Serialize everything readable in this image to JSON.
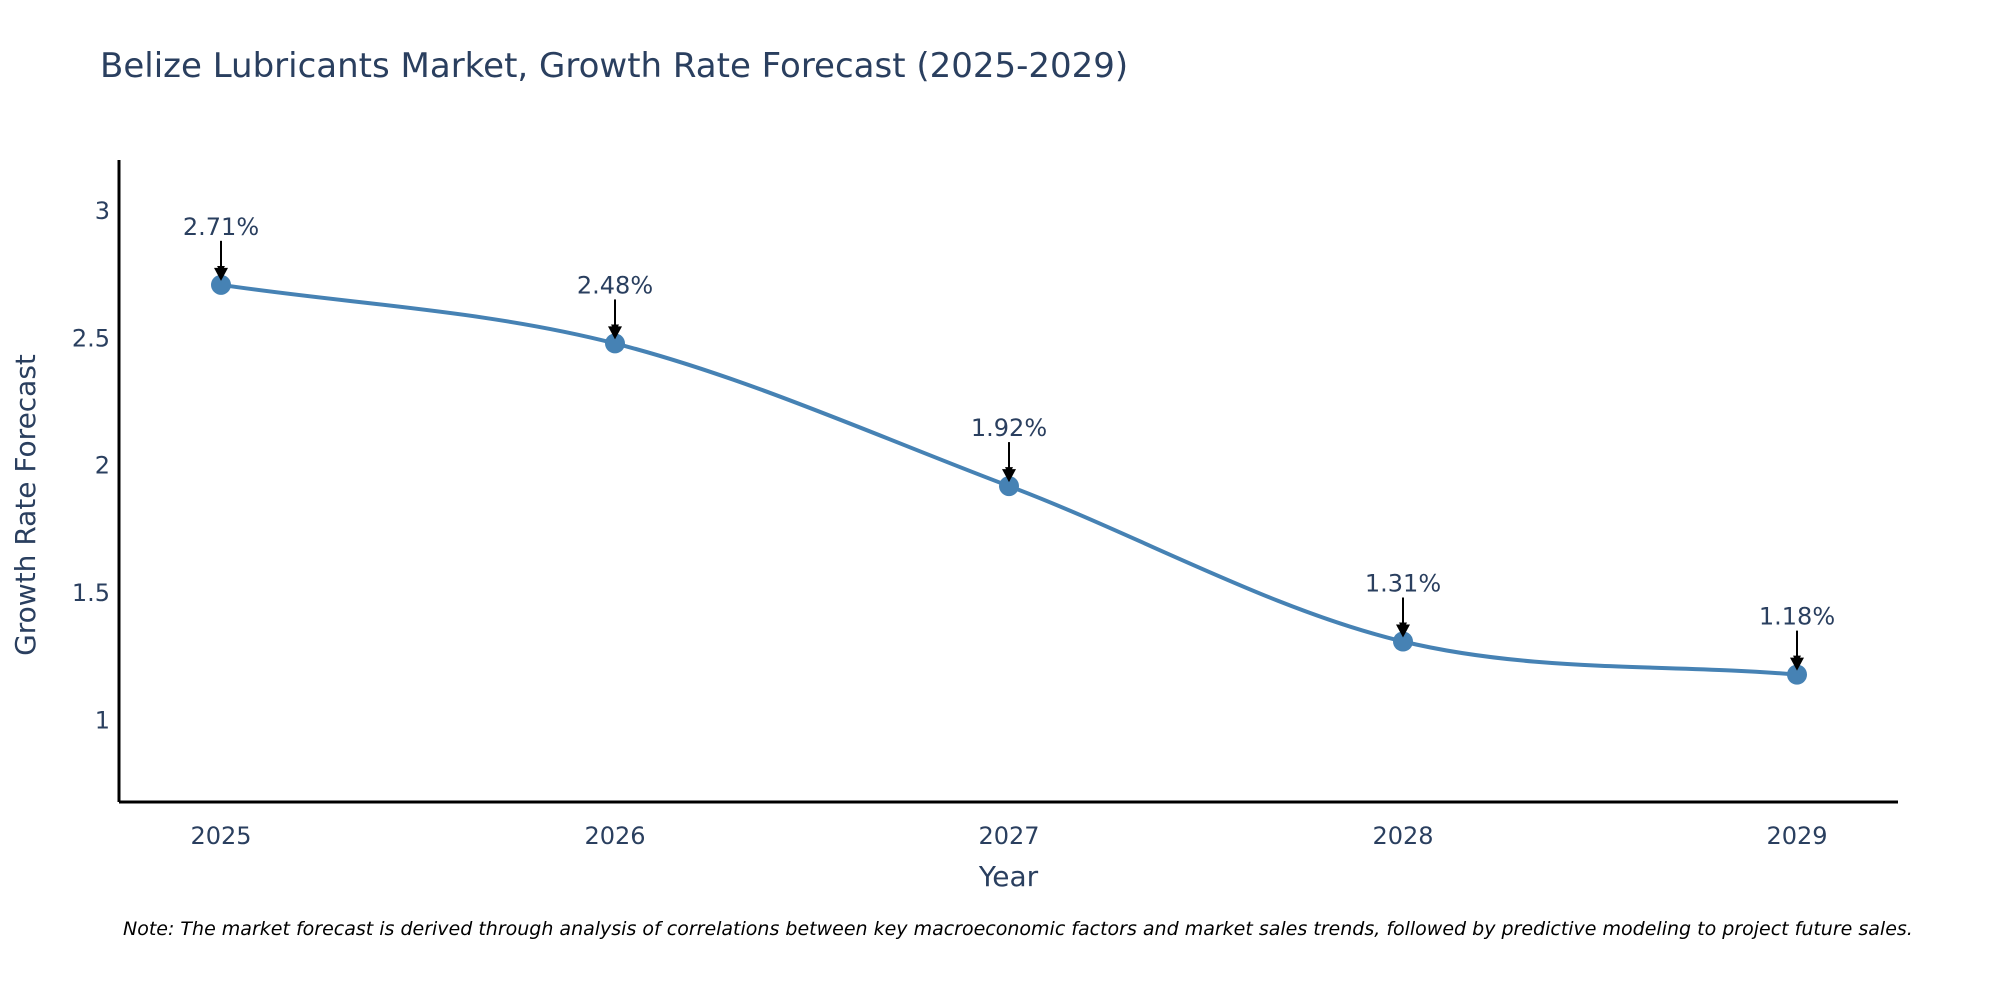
{
  "chart_data": {
    "type": "line",
    "title": "Belize Lubricants Market, Growth Rate Forecast (2025-2029)",
    "xlabel": "Year",
    "ylabel": "Growth Rate Forecast",
    "categories": [
      "2025",
      "2026",
      "2027",
      "2028",
      "2029"
    ],
    "values": [
      2.71,
      2.48,
      1.92,
      1.31,
      1.18
    ],
    "data_labels": [
      "2.71%",
      "2.48%",
      "1.92%",
      "1.31%",
      "1.18%"
    ],
    "y_ticks": [
      1,
      1.5,
      2,
      2.5,
      3
    ],
    "y_tick_labels": [
      "1",
      "1.5",
      "2",
      "2.5",
      "3"
    ],
    "ylim": [
      0.68,
      3.2
    ],
    "grid": false,
    "line_shape": "spline",
    "colors": {
      "series": "#4682b4",
      "axis": "#000000",
      "text": "#2a3f5f",
      "arrow": "#000000"
    }
  },
  "note": "Note: The market forecast is derived through analysis of correlations between key macroeconomic factors and market sales trends, followed by predictive modeling to project future sales."
}
